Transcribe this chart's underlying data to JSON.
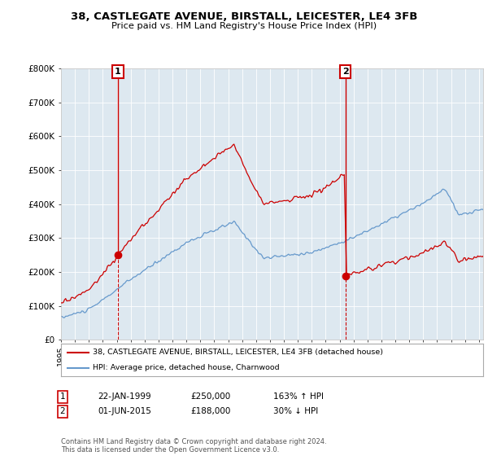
{
  "title1": "38, CASTLEGATE AVENUE, BIRSTALL, LEICESTER, LE4 3FB",
  "title2": "Price paid vs. HM Land Registry's House Price Index (HPI)",
  "legend_red": "38, CASTLEGATE AVENUE, BIRSTALL, LEICESTER, LE4 3FB (detached house)",
  "legend_blue": "HPI: Average price, detached house, Charnwood",
  "annotation1_date": "22-JAN-1999",
  "annotation1_price": "£250,000",
  "annotation1_hpi": "163% ↑ HPI",
  "annotation2_date": "01-JUN-2015",
  "annotation2_price": "£188,000",
  "annotation2_hpi": "30% ↓ HPI",
  "footer": "Contains HM Land Registry data © Crown copyright and database right 2024.\nThis data is licensed under the Open Government Licence v3.0.",
  "red_color": "#cc0000",
  "blue_color": "#6699cc",
  "bg_chart": "#dde8f0",
  "background_color": "#ffffff",
  "grid_color": "#ffffff",
  "ylim": [
    0,
    800000
  ],
  "xlim_start": 1995.0,
  "xlim_end": 2025.3,
  "sale1_year": 1999.056,
  "sale1_price": 250000,
  "sale2_year": 2015.414,
  "sale2_price": 188000
}
